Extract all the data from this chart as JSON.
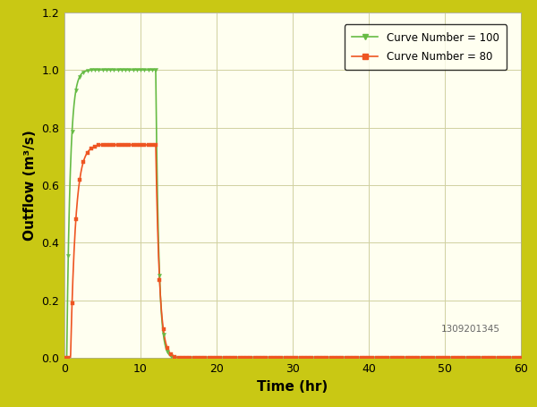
{
  "title": "",
  "xlabel": "Time (hr)",
  "ylabel": "Outflow (m³/s)",
  "xlim": [
    0,
    60
  ],
  "ylim": [
    0,
    1.2
  ],
  "xticks": [
    0,
    10,
    20,
    30,
    40,
    50,
    60
  ],
  "yticks": [
    0,
    0.2,
    0.4,
    0.6,
    0.8,
    1.0,
    1.2
  ],
  "background_outer": "#c9c814",
  "background_plot": "#fffff0",
  "grid_color": "#d0d0a0",
  "cn100_color": "#66bb44",
  "cn80_color": "#ee5522",
  "watermark": "1309201345",
  "legend_labels": [
    "Curve Number = 100",
    "Curve Number = 80"
  ],
  "marker_every": 1,
  "marker_size_cn100": 3,
  "marker_size_cn80": 3
}
